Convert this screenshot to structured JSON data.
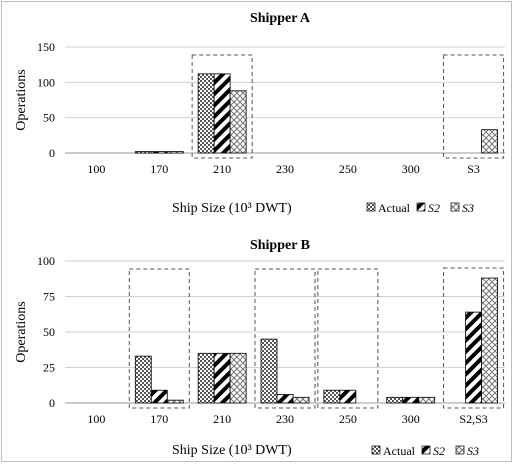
{
  "chart_data": [
    {
      "type": "bar",
      "title": "Shipper A",
      "xlabel": "Ship Size (10³ DWT)",
      "ylabel": "Operations",
      "ylim": [
        0,
        150
      ],
      "yticks": [
        0,
        50,
        100,
        150
      ],
      "categories": [
        "100",
        "170",
        "210",
        "230",
        "250",
        "300",
        "S3"
      ],
      "series": [
        {
          "name": "Actual",
          "values": [
            0,
            2,
            112,
            0,
            0,
            0,
            0
          ]
        },
        {
          "name": "S2",
          "values": [
            0,
            2,
            112,
            0,
            0,
            0,
            0
          ]
        },
        {
          "name": "S3",
          "values": [
            0,
            2,
            88,
            0,
            0,
            0,
            33
          ]
        }
      ],
      "highlighted_categories": [
        "210",
        "S3"
      ],
      "grid": true,
      "legend": "bottom-right"
    },
    {
      "type": "bar",
      "title": "Shipper B",
      "xlabel": "Ship Size (10³ DWT)",
      "ylabel": "Operations",
      "ylim": [
        0,
        100
      ],
      "yticks": [
        0,
        25,
        50,
        75,
        100
      ],
      "categories": [
        "100",
        "170",
        "210",
        "230",
        "250",
        "300",
        "S2,S3"
      ],
      "series": [
        {
          "name": "Actual",
          "values": [
            0,
            33,
            35,
            45,
            9,
            4,
            0
          ]
        },
        {
          "name": "S2",
          "values": [
            0,
            9,
            35,
            6,
            9,
            4,
            64
          ]
        },
        {
          "name": "S3",
          "values": [
            0,
            2,
            35,
            4,
            0,
            4,
            88
          ]
        }
      ],
      "highlighted_categories": [
        "170",
        "230",
        "250",
        "S2,S3"
      ],
      "grid": true,
      "legend": "bottom-right"
    }
  ]
}
